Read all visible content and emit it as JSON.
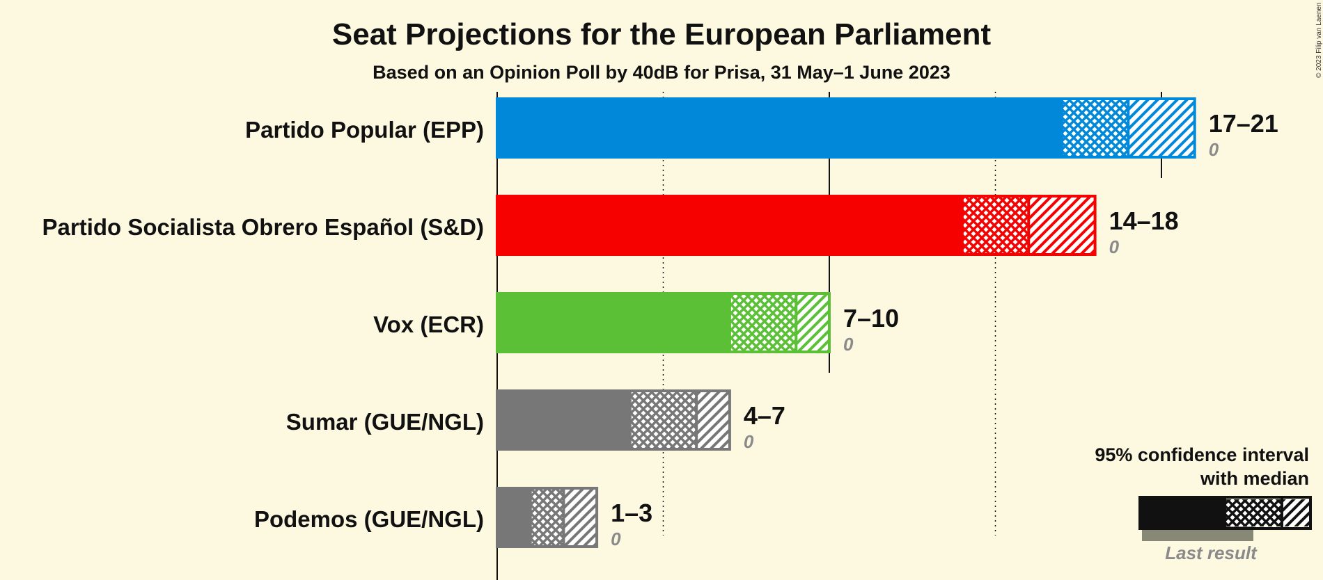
{
  "title": "Seat Projections for the European Parliament",
  "subtitle": "Based on an Opinion Poll by 40dB for Prisa, 31 May–1 June 2023",
  "copyright": "© 2023 Filip van Laenen",
  "legend": {
    "line1": "95% confidence interval",
    "line2": "with median",
    "last_result": "Last result"
  },
  "chart_data": {
    "type": "bar",
    "orientation": "horizontal",
    "x_gridlines_solid": [
      0,
      10,
      20
    ],
    "x_gridlines_dotted": [
      5,
      15
    ],
    "xlim": [
      0,
      21
    ],
    "series": [
      {
        "party": "Partido Popular (EPP)",
        "color": "#0288d8",
        "low": 17,
        "median": 19,
        "high": 21,
        "range_label": "17–21",
        "last_result": 0,
        "last_label": "0"
      },
      {
        "party": "Partido Socialista Obrero Español (S&D)",
        "color": "#f70000",
        "low": 14,
        "median": 16,
        "high": 18,
        "range_label": "14–18",
        "last_result": 0,
        "last_label": "0"
      },
      {
        "party": "Vox (ECR)",
        "color": "#5bc035",
        "low": 7,
        "median": 9,
        "high": 10,
        "range_label": "7–10",
        "last_result": 0,
        "last_label": "0"
      },
      {
        "party": "Sumar (GUE/NGL)",
        "color": "#777777",
        "low": 4,
        "median": 6,
        "high": 7,
        "range_label": "4–7",
        "last_result": 0,
        "last_label": "0"
      },
      {
        "party": "Podemos (GUE/NGL)",
        "color": "#777777",
        "low": 1,
        "median": 2,
        "high": 3,
        "range_label": "1–3",
        "last_result": 0,
        "last_label": "0"
      }
    ]
  }
}
